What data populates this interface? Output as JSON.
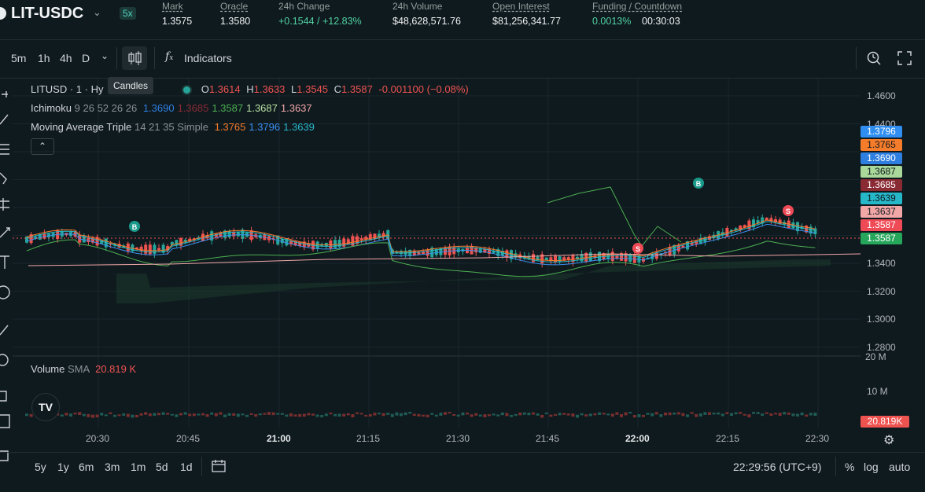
{
  "header": {
    "pair": "LIT-USDC",
    "leverage": "5x",
    "stats": [
      {
        "label": "Mark",
        "value": "1.3575",
        "underline": true,
        "color": "#f0f2f3"
      },
      {
        "label": "Oracle",
        "value": "1.3580",
        "underline": true,
        "color": "#f0f2f3"
      },
      {
        "label": "24h Change",
        "value": "+0.1544 / +12.83%",
        "underline": false,
        "color": "#50d2a1"
      },
      {
        "label": "24h Volume",
        "value": "$48,628,571.76",
        "underline": false,
        "color": "#f0f2f3"
      },
      {
        "label": "Open Interest",
        "value": "$81,256,341.77",
        "underline": true,
        "color": "#f0f2f3"
      },
      {
        "label": "Funding / Countdown",
        "value": "0.0013%",
        "value2": "00:30:03",
        "underline": true,
        "color": "#50d2a1"
      }
    ]
  },
  "toolbar": {
    "intervals": [
      "5m",
      "1h",
      "4h",
      "D"
    ],
    "indicators_label": "Indicators",
    "tooltip": "Candles"
  },
  "legend": {
    "symbol": "LITUSD · 1 · Hy",
    "o_label": "O",
    "o": "1.3614",
    "h_label": "H",
    "h": "1.3633",
    "l_label": "L",
    "l": "1.3545",
    "c_label": "C",
    "c": "1.3587",
    "change": "-0.001100 (−0.08%)",
    "ichimoku_name": "Ichimoku",
    "ichimoku_params": "9 26 52 26 26",
    "ichimoku_vals": [
      {
        "v": "1.3690",
        "color": "#2f7fe0"
      },
      {
        "v": "1.3685",
        "color": "#8a2a33"
      },
      {
        "v": "1.3587",
        "color": "#4caf50"
      },
      {
        "v": "1.3687",
        "color": "#b9e0a0"
      },
      {
        "v": "1.3637",
        "color": "#f2a7a7"
      }
    ],
    "ma_name": "Moving Average Triple",
    "ma_params": "14 21 35 Simple",
    "ma_vals": [
      {
        "v": "1.3765",
        "color": "#f57c2a"
      },
      {
        "v": "1.3796",
        "color": "#3a8ff0"
      },
      {
        "v": "1.3639",
        "color": "#26b7c9"
      }
    ]
  },
  "y_axis": {
    "ticks": [
      "1.4600",
      "1.4400",
      "1.3400",
      "1.3200",
      "1.3000",
      "1.2800"
    ],
    "tags": [
      {
        "v": "1.3796",
        "bg": "#2f8ef0"
      },
      {
        "v": "1.3765",
        "bg": "#f57c2a"
      },
      {
        "v": "1.3690",
        "bg": "#2f7fe0"
      },
      {
        "v": "1.3687",
        "bg": "#a9d89a"
      },
      {
        "v": "1.3685",
        "bg": "#8a2a33"
      },
      {
        "v": "1.3639",
        "bg": "#26b7c9"
      },
      {
        "v": "1.3637",
        "bg": "#f2a7a7"
      },
      {
        "v": "1.3587",
        "bg": "#ef4b56"
      },
      {
        "v": "1.3587",
        "bg": "#26a65b"
      }
    ]
  },
  "x_axis": {
    "ticks": [
      "20:30",
      "20:45",
      "21:00",
      "21:15",
      "21:30",
      "21:45",
      "22:00",
      "22:15",
      "22:30"
    ],
    "bold": [
      "21:00",
      "22:00"
    ]
  },
  "volume": {
    "label": "Volume",
    "sma": "SMA",
    "value": "20.819 K",
    "axis": [
      "20 M",
      "10 M"
    ],
    "tag": "20.819K"
  },
  "markers": {
    "buy": "B",
    "sell": "S"
  },
  "bottom": {
    "ranges": [
      "5y",
      "1y",
      "6m",
      "3m",
      "1m",
      "5d",
      "1d"
    ],
    "time": "22:29:56 (UTC+9)",
    "percent": "%",
    "log": "log",
    "auto": "auto"
  },
  "colors": {
    "up": "#26a69a",
    "down": "#ef5350",
    "bg": "#0f1a1f"
  }
}
